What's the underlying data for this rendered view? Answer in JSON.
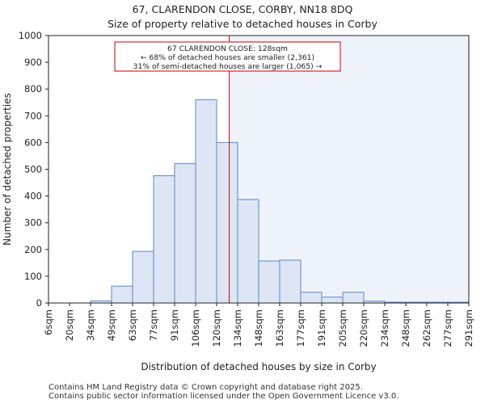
{
  "chart_data": {
    "type": "bar",
    "title": "67, CLARENDON CLOSE, CORBY, NN18 8DQ",
    "subtitle": "Size of property relative to detached houses in Corby",
    "xlabel": "Distribution of detached houses by size in Corby",
    "ylabel": "Number of detached properties",
    "ylim": [
      0,
      1000
    ],
    "yticks": [
      0,
      100,
      200,
      300,
      400,
      500,
      600,
      700,
      800,
      900,
      1000
    ],
    "bin_edges_labels": [
      "6sqm",
      "20sqm",
      "34sqm",
      "49sqm",
      "63sqm",
      "77sqm",
      "91sqm",
      "106sqm",
      "120sqm",
      "134sqm",
      "148sqm",
      "163sqm",
      "177sqm",
      "191sqm",
      "205sqm",
      "220sqm",
      "234sqm",
      "248sqm",
      "262sqm",
      "277sqm",
      "291sqm"
    ],
    "values": [
      0,
      0,
      8,
      63,
      193,
      476,
      521,
      760,
      600,
      387,
      157,
      160,
      40,
      22,
      40,
      7,
      3,
      3,
      3,
      3
    ],
    "marker_value_bin_position": 8.6,
    "annotation": {
      "line1": "67 CLARENDON CLOSE: 128sqm",
      "line2": "← 68% of detached houses are smaller (2,361)",
      "line3": "31% of semi-detached houses are larger (1,065) →"
    },
    "colors": {
      "bar_fill": "#dce6f5",
      "bar_stroke": "#5b87c4",
      "marker_line": "#cc0000",
      "shaded_region": "#eef2fa"
    }
  },
  "footer": {
    "line1": "Contains HM Land Registry data © Crown copyright and database right 2025.",
    "line2": "Contains public sector information licensed under the Open Government Licence v3.0."
  }
}
